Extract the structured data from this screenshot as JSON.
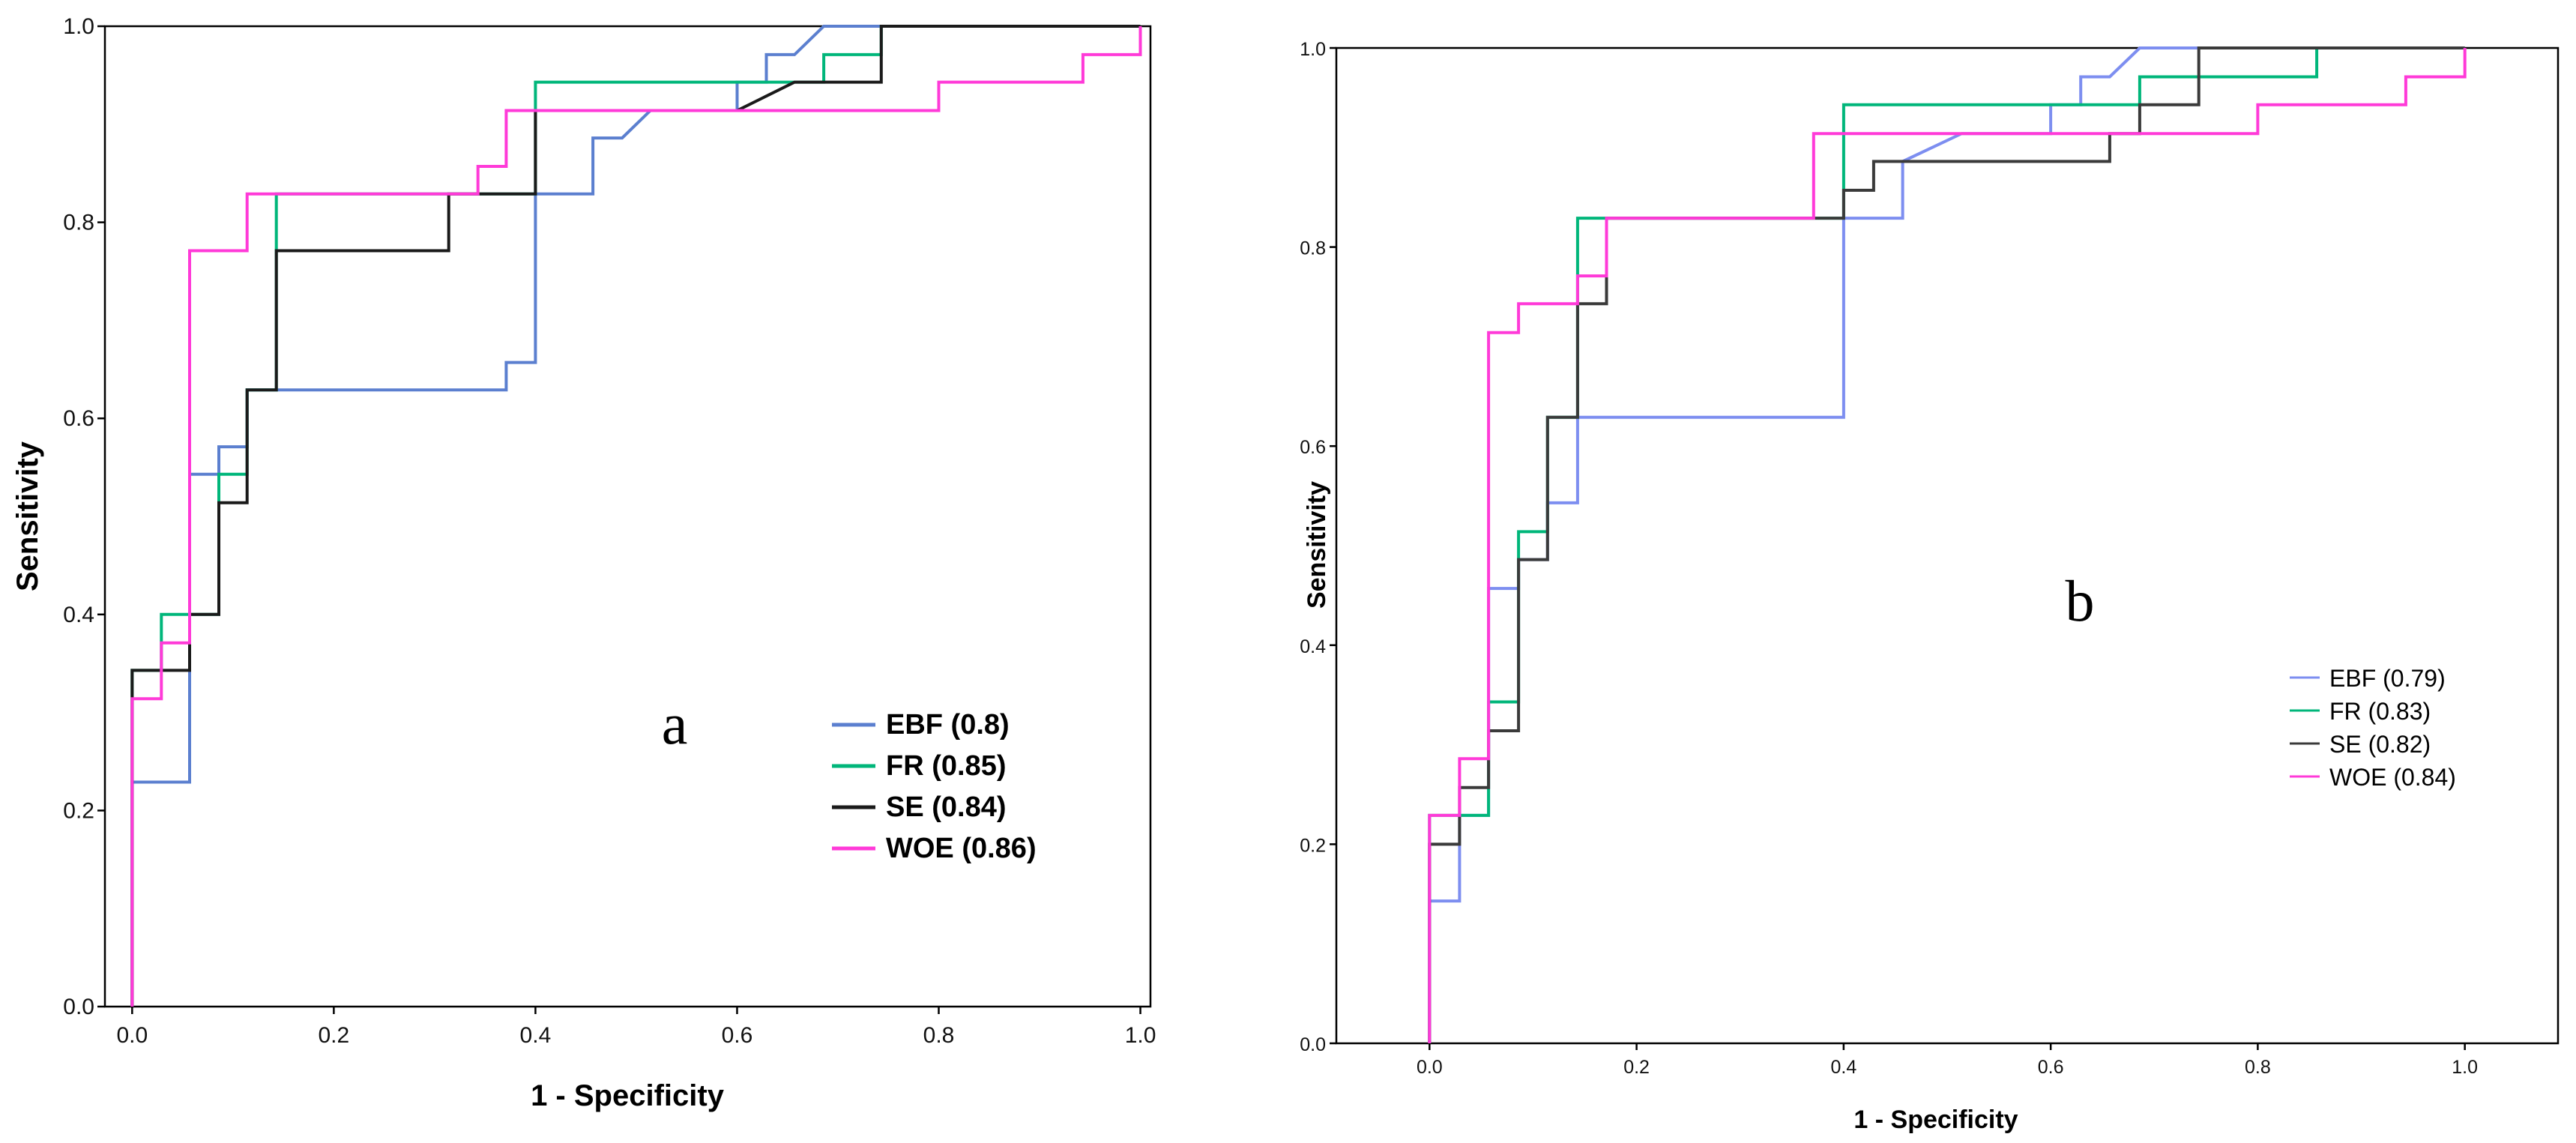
{
  "chart_data": [
    {
      "panel": "a",
      "type": "line",
      "title": "",
      "panel_label": "a",
      "xlabel": "1 - Specificity",
      "ylabel": "Sensitivity",
      "xlim": [
        -0.027,
        1.01
      ],
      "ylim": [
        0,
        1.0
      ],
      "xticks": [
        "0.0",
        "0.2",
        "0.4",
        "0.6",
        "0.8",
        "1.0"
      ],
      "yticks": [
        "0.0",
        "0.2",
        "0.4",
        "0.6",
        "0.8",
        "1.0"
      ],
      "legend_position": "lower-right",
      "series": [
        {
          "name": "EBF",
          "legend_label": "EBF (0.8)",
          "color": "#5b7fcf",
          "points": [
            [
              0,
              0
            ],
            [
              0,
              0.229
            ],
            [
              0.057,
              0.229
            ],
            [
              0.057,
              0.543
            ],
            [
              0.086,
              0.543
            ],
            [
              0.086,
              0.571
            ],
            [
              0.114,
              0.571
            ],
            [
              0.114,
              0.629
            ],
            [
              0.143,
              0.629
            ],
            [
              0.371,
              0.629
            ],
            [
              0.371,
              0.657
            ],
            [
              0.4,
              0.657
            ],
            [
              0.4,
              0.829
            ],
            [
              0.457,
              0.829
            ],
            [
              0.457,
              0.886
            ],
            [
              0.486,
              0.886
            ],
            [
              0.514,
              0.914
            ],
            [
              0.6,
              0.914
            ],
            [
              0.6,
              0.943
            ],
            [
              0.629,
              0.943
            ],
            [
              0.629,
              0.971
            ],
            [
              0.657,
              0.971
            ],
            [
              0.686,
              1.0
            ],
            [
              1.0,
              1.0
            ]
          ]
        },
        {
          "name": "FR",
          "legend_label": "FR (0.85)",
          "color": "#00b67a",
          "points": [
            [
              0,
              0
            ],
            [
              0,
              0.343
            ],
            [
              0.029,
              0.343
            ],
            [
              0.029,
              0.4
            ],
            [
              0.057,
              0.4
            ],
            [
              0.057,
              0.4
            ],
            [
              0.086,
              0.4
            ],
            [
              0.086,
              0.543
            ],
            [
              0.114,
              0.543
            ],
            [
              0.114,
              0.629
            ],
            [
              0.143,
              0.629
            ],
            [
              0.143,
              0.829
            ],
            [
              0.371,
              0.829
            ],
            [
              0.4,
              0.829
            ],
            [
              0.4,
              0.943
            ],
            [
              0.686,
              0.943
            ],
            [
              0.686,
              0.971
            ],
            [
              0.743,
              0.971
            ],
            [
              0.743,
              1.0
            ],
            [
              1.0,
              1.0
            ]
          ]
        },
        {
          "name": "SE",
          "legend_label": "SE (0.84)",
          "color": "#1a1a1a",
          "points": [
            [
              0,
              0
            ],
            [
              0,
              0.343
            ],
            [
              0.057,
              0.343
            ],
            [
              0.057,
              0.4
            ],
            [
              0.086,
              0.4
            ],
            [
              0.086,
              0.514
            ],
            [
              0.114,
              0.514
            ],
            [
              0.114,
              0.629
            ],
            [
              0.143,
              0.629
            ],
            [
              0.143,
              0.771
            ],
            [
              0.314,
              0.771
            ],
            [
              0.314,
              0.829
            ],
            [
              0.4,
              0.829
            ],
            [
              0.4,
              0.914
            ],
            [
              0.6,
              0.914
            ],
            [
              0.657,
              0.943
            ],
            [
              0.743,
              0.943
            ],
            [
              0.743,
              1.0
            ],
            [
              1.0,
              1.0
            ]
          ]
        },
        {
          "name": "WOE",
          "legend_label": "WOE (0.86)",
          "color": "#ff3ad8",
          "points": [
            [
              0,
              0
            ],
            [
              0,
              0.314
            ],
            [
              0.029,
              0.314
            ],
            [
              0.029,
              0.371
            ],
            [
              0.057,
              0.371
            ],
            [
              0.057,
              0.771
            ],
            [
              0.114,
              0.771
            ],
            [
              0.114,
              0.829
            ],
            [
              0.343,
              0.829
            ],
            [
              0.343,
              0.857
            ],
            [
              0.371,
              0.857
            ],
            [
              0.371,
              0.914
            ],
            [
              0.8,
              0.914
            ],
            [
              0.8,
              0.943
            ],
            [
              0.943,
              0.943
            ],
            [
              0.943,
              0.971
            ],
            [
              1.0,
              0.971
            ],
            [
              1.0,
              1.0
            ]
          ]
        }
      ]
    },
    {
      "panel": "b",
      "type": "line",
      "title": "",
      "panel_label": "b",
      "xlabel": "1 - Specificity",
      "ylabel": "Sensitivity",
      "xlim": [
        -0.09,
        1.09
      ],
      "ylim": [
        0,
        1.0
      ],
      "xticks": [
        "0.0",
        "0.2",
        "0.4",
        "0.6",
        "0.8",
        "1.0"
      ],
      "yticks": [
        "0.0",
        "0.2",
        "0.4",
        "0.6",
        "0.8",
        "1.0"
      ],
      "legend_position": "center-right",
      "series": [
        {
          "name": "EBF",
          "legend_label": "EBF (0.79)",
          "color": "#7d8ef0",
          "points": [
            [
              0,
              0
            ],
            [
              0,
              0.143
            ],
            [
              0.029,
              0.143
            ],
            [
              0.029,
              0.229
            ],
            [
              0.057,
              0.229
            ],
            [
              0.057,
              0.457
            ],
            [
              0.086,
              0.457
            ],
            [
              0.086,
              0.486
            ],
            [
              0.114,
              0.486
            ],
            [
              0.114,
              0.543
            ],
            [
              0.143,
              0.543
            ],
            [
              0.143,
              0.629
            ],
            [
              0.4,
              0.629
            ],
            [
              0.4,
              0.829
            ],
            [
              0.457,
              0.829
            ],
            [
              0.457,
              0.886
            ],
            [
              0.514,
              0.914
            ],
            [
              0.6,
              0.914
            ],
            [
              0.6,
              0.943
            ],
            [
              0.629,
              0.943
            ],
            [
              0.629,
              0.971
            ],
            [
              0.657,
              0.971
            ],
            [
              0.686,
              1.0
            ],
            [
              1.0,
              1.0
            ]
          ]
        },
        {
          "name": "FR",
          "legend_label": "FR (0.83)",
          "color": "#00b67a",
          "points": [
            [
              0,
              0
            ],
            [
              0,
              0.229
            ],
            [
              0.057,
              0.229
            ],
            [
              0.057,
              0.343
            ],
            [
              0.086,
              0.343
            ],
            [
              0.086,
              0.514
            ],
            [
              0.114,
              0.514
            ],
            [
              0.114,
              0.629
            ],
            [
              0.143,
              0.629
            ],
            [
              0.143,
              0.829
            ],
            [
              0.371,
              0.829
            ],
            [
              0.4,
              0.829
            ],
            [
              0.4,
              0.943
            ],
            [
              0.686,
              0.943
            ],
            [
              0.686,
              0.971
            ],
            [
              0.743,
              0.971
            ],
            [
              0.857,
              0.971
            ],
            [
              0.857,
              1.0
            ],
            [
              1.0,
              1.0
            ]
          ]
        },
        {
          "name": "SE",
          "legend_label": "SE (0.82)",
          "color": "#3a3a3a",
          "points": [
            [
              0,
              0
            ],
            [
              0,
              0.2
            ],
            [
              0.029,
              0.2
            ],
            [
              0.029,
              0.257
            ],
            [
              0.057,
              0.257
            ],
            [
              0.057,
              0.314
            ],
            [
              0.086,
              0.314
            ],
            [
              0.086,
              0.486
            ],
            [
              0.114,
              0.486
            ],
            [
              0.114,
              0.629
            ],
            [
              0.143,
              0.629
            ],
            [
              0.143,
              0.743
            ],
            [
              0.171,
              0.743
            ],
            [
              0.171,
              0.829
            ],
            [
              0.4,
              0.829
            ],
            [
              0.4,
              0.857
            ],
            [
              0.429,
              0.857
            ],
            [
              0.429,
              0.886
            ],
            [
              0.657,
              0.886
            ],
            [
              0.657,
              0.914
            ],
            [
              0.686,
              0.914
            ],
            [
              0.686,
              0.943
            ],
            [
              0.743,
              0.943
            ],
            [
              0.743,
              1.0
            ],
            [
              1.0,
              1.0
            ]
          ]
        },
        {
          "name": "WOE",
          "legend_label": "WOE (0.84)",
          "color": "#ff3ad8",
          "points": [
            [
              0,
              0
            ],
            [
              0,
              0.229
            ],
            [
              0.029,
              0.229
            ],
            [
              0.029,
              0.286
            ],
            [
              0.057,
              0.286
            ],
            [
              0.057,
              0.714
            ],
            [
              0.086,
              0.714
            ],
            [
              0.086,
              0.743
            ],
            [
              0.143,
              0.743
            ],
            [
              0.143,
              0.771
            ],
            [
              0.171,
              0.771
            ],
            [
              0.171,
              0.829
            ],
            [
              0.371,
              0.829
            ],
            [
              0.371,
              0.914
            ],
            [
              0.8,
              0.914
            ],
            [
              0.8,
              0.943
            ],
            [
              0.943,
              0.943
            ],
            [
              0.943,
              0.971
            ],
            [
              1.0,
              0.971
            ],
            [
              1.0,
              1.0
            ]
          ]
        }
      ]
    }
  ]
}
